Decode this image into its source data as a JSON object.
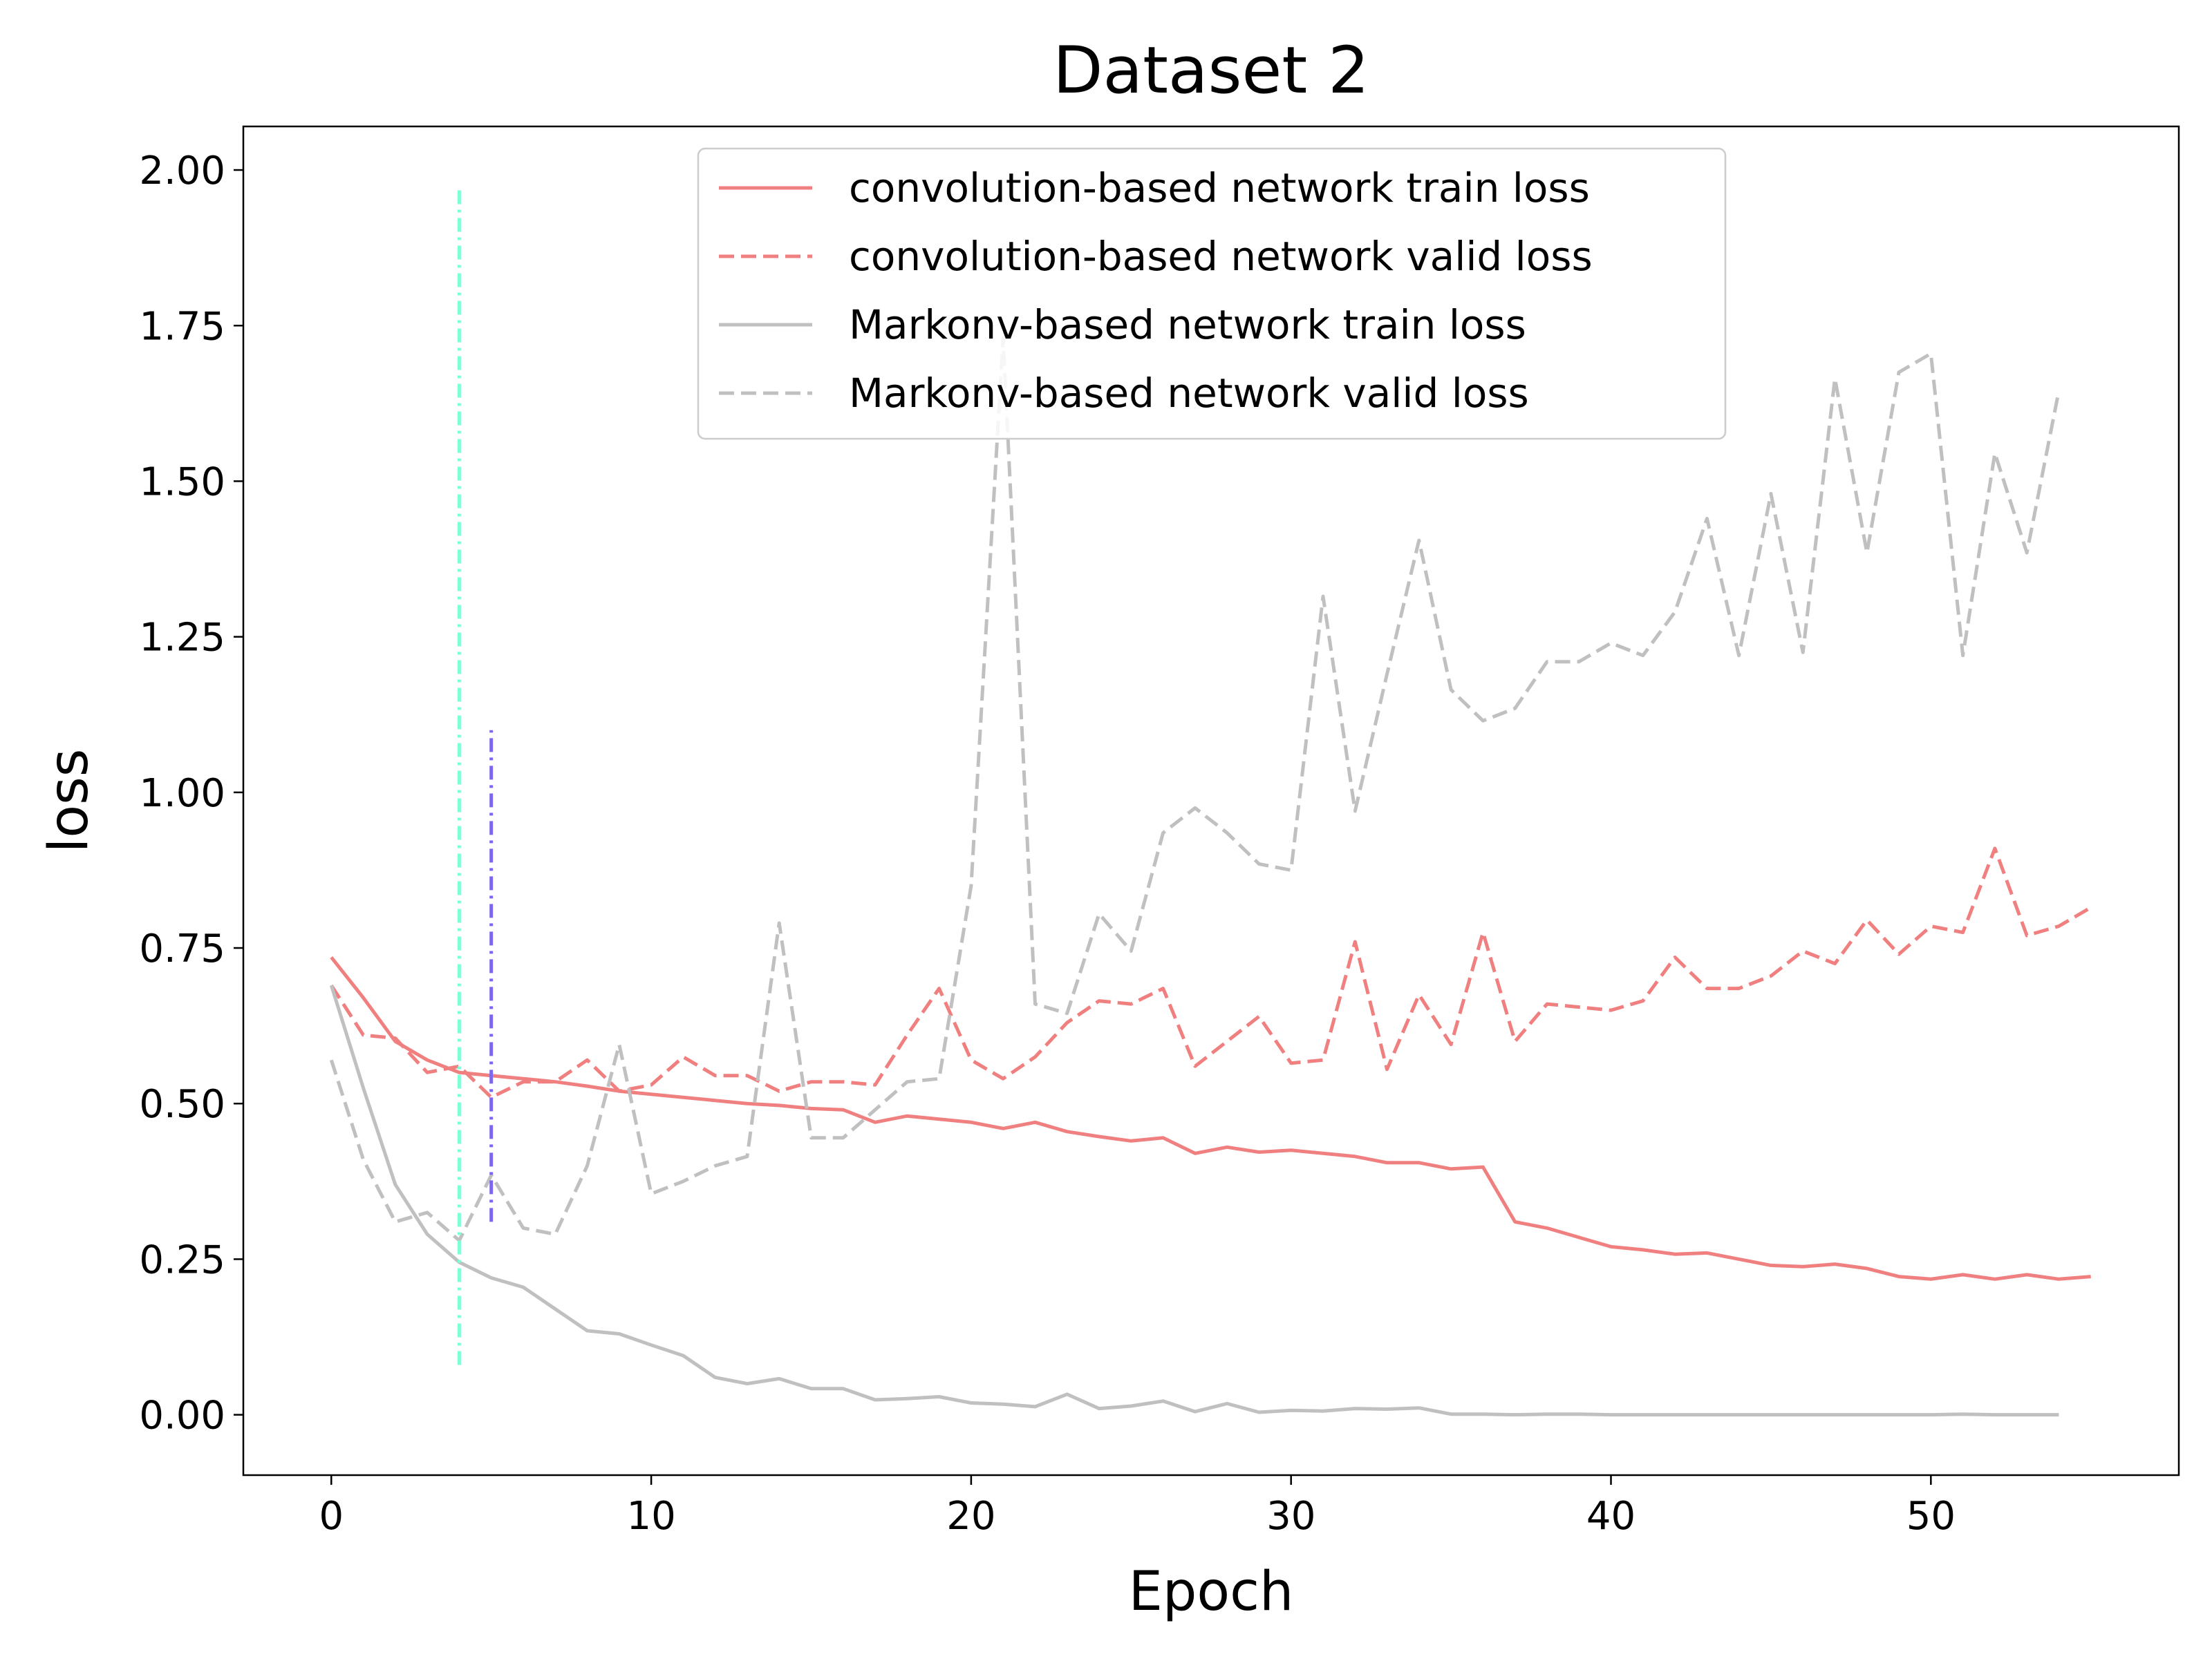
{
  "chart_data": {
    "type": "line",
    "title": "Dataset 2",
    "xlabel": "Epoch",
    "ylabel": "loss",
    "xlim": [
      -2.75,
      57.75
    ],
    "ylim": [
      -0.097,
      2.07
    ],
    "x_ticks": [
      0,
      10,
      20,
      30,
      40,
      50
    ],
    "x_tick_labels": [
      "0",
      "10",
      "20",
      "30",
      "40",
      "50"
    ],
    "y_ticks": [
      0.0,
      0.25,
      0.5,
      0.75,
      1.0,
      1.25,
      1.5,
      1.75,
      2.0
    ],
    "y_tick_labels": [
      "0.00",
      "0.25",
      "0.50",
      "0.75",
      "1.00",
      "1.25",
      "1.50",
      "1.75",
      "2.00"
    ],
    "grid": false,
    "legend_position": "top-center",
    "series": [
      {
        "name": "convolution-based network train loss",
        "color": "#f08080",
        "dash": "solid",
        "x_start": 0,
        "values": [
          0.735,
          0.67,
          0.6,
          0.57,
          0.55,
          0.545,
          0.54,
          0.535,
          0.528,
          0.52,
          0.515,
          0.51,
          0.505,
          0.5,
          0.497,
          0.492,
          0.49,
          0.47,
          0.48,
          0.475,
          0.47,
          0.46,
          0.47,
          0.455,
          0.447,
          0.44,
          0.445,
          0.42,
          0.43,
          0.422,
          0.425,
          0.42,
          0.415,
          0.405,
          0.405,
          0.395,
          0.398,
          0.31,
          0.3,
          0.285,
          0.27,
          0.265,
          0.258,
          0.26,
          0.25,
          0.24,
          0.238,
          0.242,
          0.235,
          0.222,
          0.218,
          0.225,
          0.218,
          0.225,
          0.218,
          0.222
        ]
      },
      {
        "name": "convolution-based network valid loss",
        "color": "#f08080",
        "dash": "dashed",
        "x_start": 0,
        "values": [
          0.69,
          0.61,
          0.605,
          0.55,
          0.56,
          0.51,
          0.535,
          0.535,
          0.57,
          0.52,
          0.53,
          0.575,
          0.545,
          0.545,
          0.52,
          0.535,
          0.535,
          0.53,
          0.61,
          0.685,
          0.57,
          0.54,
          0.575,
          0.63,
          0.665,
          0.66,
          0.685,
          0.56,
          0.6,
          0.64,
          0.565,
          0.57,
          0.76,
          0.555,
          0.675,
          0.595,
          0.775,
          0.6,
          0.66,
          0.655,
          0.65,
          0.665,
          0.735,
          0.685,
          0.685,
          0.705,
          0.745,
          0.725,
          0.795,
          0.74,
          0.785,
          0.775,
          0.91,
          0.77,
          0.785,
          0.815
        ]
      },
      {
        "name": "Markonv-based network train loss",
        "color": "#c0c0c0",
        "dash": "solid",
        "x_start": 0,
        "values": [
          0.69,
          0.525,
          0.37,
          0.29,
          0.245,
          0.22,
          0.205,
          0.17,
          0.135,
          0.13,
          0.112,
          0.095,
          0.06,
          0.05,
          0.058,
          0.042,
          0.042,
          0.024,
          0.026,
          0.029,
          0.019,
          0.017,
          0.013,
          0.033,
          0.01,
          0.014,
          0.022,
          0.005,
          0.018,
          0.004,
          0.007,
          0.006,
          0.01,
          0.009,
          0.011,
          0.001,
          0.001,
          0.0,
          0.001,
          0.001,
          0.0,
          0.0,
          0.0,
          0.0,
          0.0,
          0.0,
          0.0,
          0.0,
          0.0,
          0.0,
          0.0,
          0.001,
          0.0,
          0.0,
          0.0
        ]
      },
      {
        "name": "Markonv-based network valid loss",
        "color": "#c0c0c0",
        "dash": "dashed",
        "x_start": 0,
        "values": [
          0.57,
          0.41,
          0.31,
          0.325,
          0.28,
          0.385,
          0.3,
          0.29,
          0.4,
          0.595,
          0.355,
          0.375,
          0.4,
          0.415,
          0.79,
          0.445,
          0.445,
          0.49,
          0.535,
          0.54,
          0.85,
          1.73,
          0.66,
          0.645,
          0.805,
          0.745,
          0.935,
          0.975,
          0.935,
          0.885,
          0.875,
          1.315,
          0.97,
          1.19,
          1.405,
          1.165,
          1.115,
          1.135,
          1.21,
          1.21,
          1.24,
          1.22,
          1.29,
          1.44,
          1.22,
          1.48,
          1.225,
          1.665,
          1.385,
          1.675,
          1.705,
          1.22,
          1.545,
          1.385,
          1.645
        ]
      }
    ],
    "vertical_markers": [
      {
        "x": 4,
        "y_from": 0.08,
        "y_to": 1.97,
        "color": "#7fffd4",
        "dash": "dashdot"
      },
      {
        "x": 5,
        "y_from": 0.31,
        "y_to": 1.1,
        "color": "#7b68ee",
        "dash": "dashdot"
      }
    ]
  }
}
